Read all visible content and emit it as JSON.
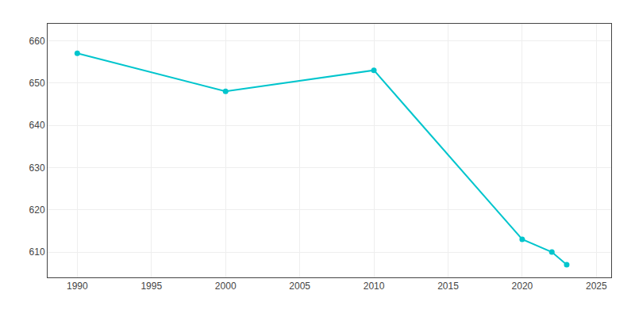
{
  "chart_data": {
    "type": "line",
    "x": [
      1990,
      2000,
      2010,
      2020,
      2022,
      2023
    ],
    "values": [
      657,
      648,
      653,
      613,
      610,
      607
    ],
    "color": "#00c5cd",
    "marker": "circle",
    "xlim": [
      1988,
      2026
    ],
    "ylim": [
      604,
      664
    ],
    "xticks": [
      1990,
      1995,
      2000,
      2005,
      2010,
      2015,
      2020,
      2025
    ],
    "yticks": [
      610,
      620,
      630,
      640,
      650,
      660
    ],
    "grid": true
  }
}
